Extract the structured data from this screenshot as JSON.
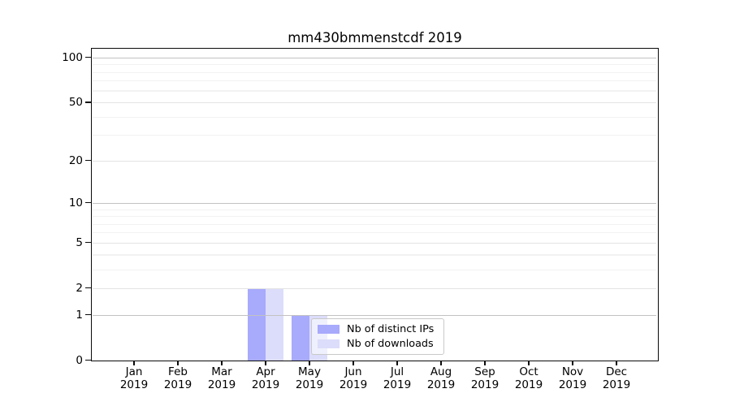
{
  "chart_data": {
    "type": "bar",
    "title": "mm430bmmenstcdf 2019",
    "categories": [
      "Jan",
      "Feb",
      "Mar",
      "Apr",
      "May",
      "Jun",
      "Jul",
      "Aug",
      "Sep",
      "Oct",
      "Nov",
      "Dec"
    ],
    "year": "2019",
    "series": [
      {
        "name": "Nb of distinct IPs",
        "color": "#a8aafc",
        "values": [
          0,
          0,
          0,
          2,
          1,
          0,
          0,
          0,
          0,
          0,
          0,
          0
        ]
      },
      {
        "name": "Nb of downloads",
        "color": "#dcddfa",
        "values": [
          0,
          0,
          0,
          2,
          1,
          0,
          0,
          0,
          0,
          0,
          0,
          0
        ]
      }
    ],
    "yscale": "log1p",
    "ylim": [
      0,
      114
    ],
    "xlabel": "",
    "ylabel": "",
    "grid": true,
    "legend_position": "lower center",
    "y_ticks": [
      {
        "label": "100",
        "value": 100
      },
      {
        "label": "50",
        "value": 50
      },
      {
        "label": "20",
        "value": 20
      },
      {
        "label": "10",
        "value": 10
      },
      {
        "label": "5",
        "value": 5
      },
      {
        "label": "2",
        "value": 2
      },
      {
        "label": "1",
        "value": 1
      },
      {
        "label": "0",
        "value": 0
      }
    ],
    "y_decade_gridlines": [
      1,
      10,
      100
    ],
    "y_labeled_gridlines": [
      2,
      5,
      20,
      50
    ],
    "y_minor_gridlines": [
      3,
      4,
      6,
      7,
      8,
      9,
      30,
      40,
      60,
      70,
      80,
      90
    ]
  }
}
